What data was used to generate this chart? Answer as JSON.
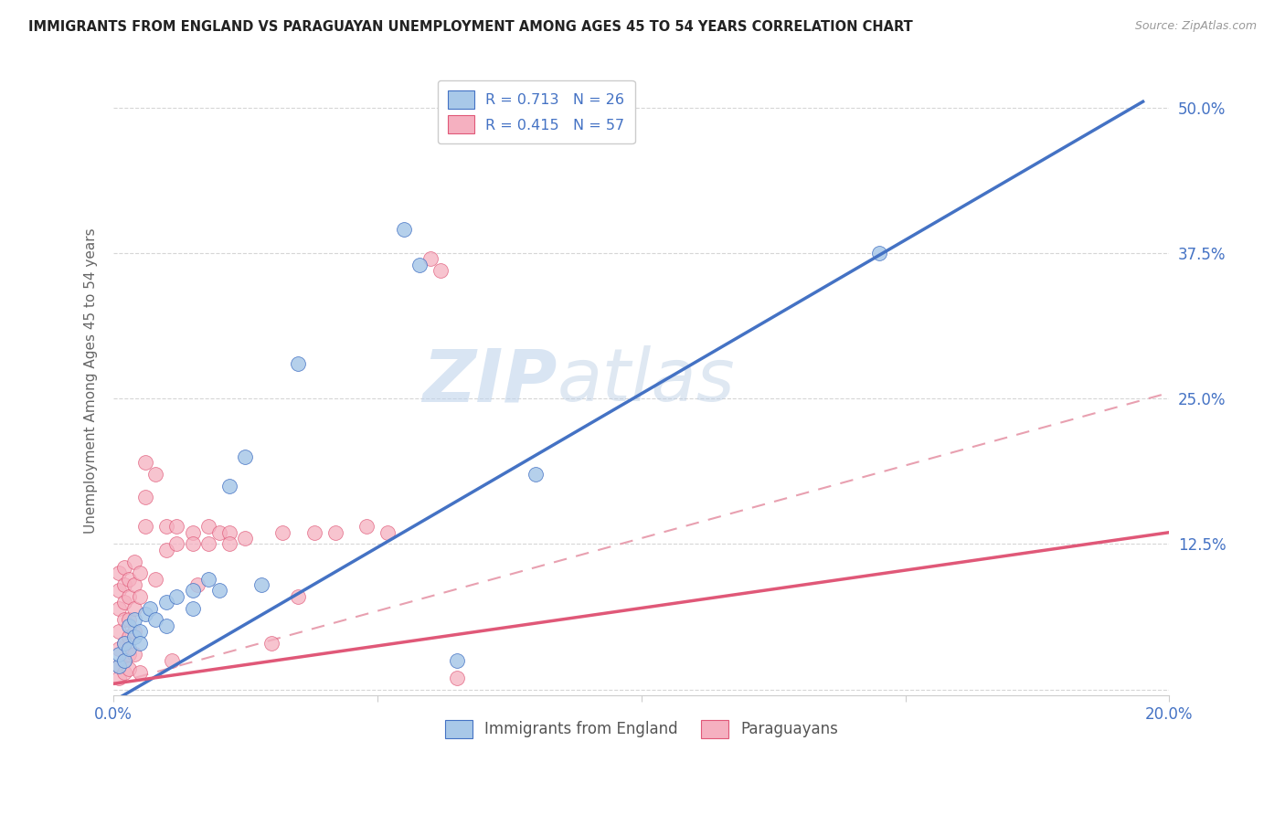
{
  "title": "IMMIGRANTS FROM ENGLAND VS PARAGUAYAN UNEMPLOYMENT AMONG AGES 45 TO 54 YEARS CORRELATION CHART",
  "source": "Source: ZipAtlas.com",
  "ylabel": "Unemployment Among Ages 45 to 54 years",
  "xlim": [
    0.0,
    0.2
  ],
  "ylim": [
    -0.005,
    0.535
  ],
  "xticks": [
    0.0,
    0.05,
    0.1,
    0.15,
    0.2
  ],
  "xticklabels": [
    "0.0%",
    "",
    "",
    "",
    "20.0%"
  ],
  "yticks": [
    0.0,
    0.125,
    0.25,
    0.375,
    0.5
  ],
  "yticklabels": [
    "",
    "12.5%",
    "25.0%",
    "37.5%",
    "50.0%"
  ],
  "color_blue": "#a8c8e8",
  "color_pink": "#f5b0c0",
  "line_blue": "#4472c4",
  "line_pink": "#e05878",
  "line_pink_dash": "#e8a0b0",
  "watermark_zip": "ZIP",
  "watermark_atlas": "atlas",
  "blue_scatter": [
    [
      0.001,
      0.02
    ],
    [
      0.001,
      0.03
    ],
    [
      0.002,
      0.025
    ],
    [
      0.002,
      0.04
    ],
    [
      0.003,
      0.035
    ],
    [
      0.003,
      0.055
    ],
    [
      0.004,
      0.045
    ],
    [
      0.004,
      0.06
    ],
    [
      0.005,
      0.05
    ],
    [
      0.005,
      0.04
    ],
    [
      0.006,
      0.065
    ],
    [
      0.007,
      0.07
    ],
    [
      0.008,
      0.06
    ],
    [
      0.01,
      0.075
    ],
    [
      0.01,
      0.055
    ],
    [
      0.012,
      0.08
    ],
    [
      0.015,
      0.085
    ],
    [
      0.015,
      0.07
    ],
    [
      0.018,
      0.095
    ],
    [
      0.02,
      0.085
    ],
    [
      0.022,
      0.175
    ],
    [
      0.025,
      0.2
    ],
    [
      0.028,
      0.09
    ],
    [
      0.035,
      0.28
    ],
    [
      0.055,
      0.395
    ],
    [
      0.058,
      0.365
    ],
    [
      0.065,
      0.025
    ],
    [
      0.08,
      0.185
    ],
    [
      0.145,
      0.375
    ]
  ],
  "pink_scatter": [
    [
      0.001,
      0.1
    ],
    [
      0.001,
      0.085
    ],
    [
      0.001,
      0.07
    ],
    [
      0.001,
      0.05
    ],
    [
      0.001,
      0.035
    ],
    [
      0.001,
      0.02
    ],
    [
      0.001,
      0.01
    ],
    [
      0.002,
      0.105
    ],
    [
      0.002,
      0.09
    ],
    [
      0.002,
      0.075
    ],
    [
      0.002,
      0.06
    ],
    [
      0.002,
      0.04
    ],
    [
      0.002,
      0.025
    ],
    [
      0.002,
      0.015
    ],
    [
      0.003,
      0.095
    ],
    [
      0.003,
      0.08
    ],
    [
      0.003,
      0.06
    ],
    [
      0.003,
      0.045
    ],
    [
      0.003,
      0.03
    ],
    [
      0.003,
      0.018
    ],
    [
      0.004,
      0.11
    ],
    [
      0.004,
      0.09
    ],
    [
      0.004,
      0.07
    ],
    [
      0.004,
      0.05
    ],
    [
      0.004,
      0.03
    ],
    [
      0.005,
      0.1
    ],
    [
      0.005,
      0.08
    ],
    [
      0.005,
      0.015
    ],
    [
      0.006,
      0.195
    ],
    [
      0.006,
      0.165
    ],
    [
      0.006,
      0.14
    ],
    [
      0.008,
      0.185
    ],
    [
      0.008,
      0.095
    ],
    [
      0.01,
      0.14
    ],
    [
      0.01,
      0.12
    ],
    [
      0.011,
      0.025
    ],
    [
      0.012,
      0.14
    ],
    [
      0.012,
      0.125
    ],
    [
      0.015,
      0.135
    ],
    [
      0.015,
      0.125
    ],
    [
      0.016,
      0.09
    ],
    [
      0.018,
      0.14
    ],
    [
      0.018,
      0.125
    ],
    [
      0.02,
      0.135
    ],
    [
      0.022,
      0.135
    ],
    [
      0.022,
      0.125
    ],
    [
      0.025,
      0.13
    ],
    [
      0.03,
      0.04
    ],
    [
      0.032,
      0.135
    ],
    [
      0.035,
      0.08
    ],
    [
      0.038,
      0.135
    ],
    [
      0.042,
      0.135
    ],
    [
      0.048,
      0.14
    ],
    [
      0.052,
      0.135
    ],
    [
      0.06,
      0.37
    ],
    [
      0.062,
      0.36
    ],
    [
      0.065,
      0.01
    ]
  ],
  "blue_line": {
    "x0": 0.0,
    "x1": 0.195,
    "y0": -0.01,
    "y1": 0.505
  },
  "pink_line": {
    "x0": 0.0,
    "x1": 0.2,
    "y0": 0.005,
    "y1": 0.135
  },
  "pink_dash_line": {
    "x0": 0.0,
    "x1": 0.2,
    "y0": 0.005,
    "y1": 0.255
  }
}
